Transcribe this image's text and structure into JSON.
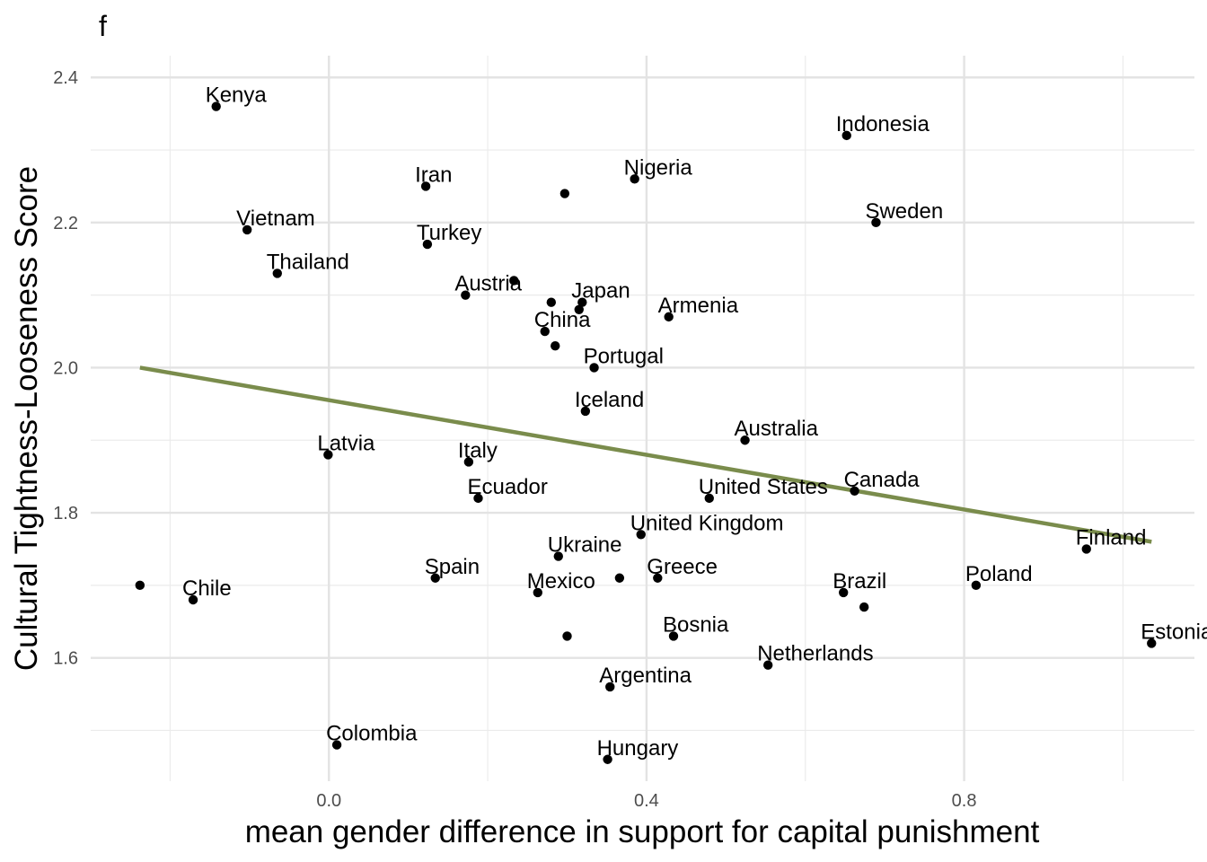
{
  "chart_data": {
    "type": "scatter",
    "panel_tag": "f",
    "title": "",
    "xlabel": "mean gender difference in support for capital punishment",
    "ylabel": "Cultural Tightness-Looseness Score",
    "xlim": [
      -0.3,
      1.09
    ],
    "ylim": [
      1.43,
      2.43
    ],
    "x_ticks": [
      0.0,
      0.4,
      0.8
    ],
    "x_tick_labels": [
      "0.0",
      "0.4",
      "0.8"
    ],
    "x_minor_ticks": [
      -0.4,
      -0.2,
      0.2,
      0.6,
      1.0
    ],
    "y_ticks": [
      1.6,
      1.8,
      2.0,
      2.2,
      2.4
    ],
    "y_tick_labels": [
      "1.6",
      "1.8",
      "2.0",
      "2.2",
      "2.4"
    ],
    "y_minor_ticks": [
      1.5,
      1.7,
      1.9,
      2.1,
      2.3
    ],
    "grid": true,
    "legend": "none",
    "point_color": "#000000",
    "fit_line_color": "#7a8c4c",
    "fit_line": {
      "x": [
        -0.238,
        1.036
      ],
      "y": [
        2.0,
        1.76
      ]
    },
    "points": [
      {
        "label": "Kenya",
        "x": -0.142,
        "y": 2.36
      },
      {
        "label": "Indonesia",
        "x": 0.652,
        "y": 2.32
      },
      {
        "label": "Iran",
        "x": 0.122,
        "y": 2.25
      },
      {
        "label": "",
        "x": 0.297,
        "y": 2.24
      },
      {
        "label": "Nigeria",
        "x": 0.385,
        "y": 2.26
      },
      {
        "label": "Vietnam",
        "x": -0.103,
        "y": 2.19
      },
      {
        "label": "Sweden",
        "x": 0.689,
        "y": 2.2
      },
      {
        "label": "Turkey",
        "x": 0.124,
        "y": 2.17
      },
      {
        "label": "Thailand",
        "x": -0.065,
        "y": 2.13
      },
      {
        "label": "",
        "x": 0.233,
        "y": 2.12
      },
      {
        "label": "Austria",
        "x": 0.172,
        "y": 2.1
      },
      {
        "label": "",
        "x": 0.28,
        "y": 2.09
      },
      {
        "label": "Japan",
        "x": 0.319,
        "y": 2.09
      },
      {
        "label": "",
        "x": 0.315,
        "y": 2.08
      },
      {
        "label": "Armenia",
        "x": 0.428,
        "y": 2.07
      },
      {
        "label": "China",
        "x": 0.272,
        "y": 2.05
      },
      {
        "label": "",
        "x": 0.285,
        "y": 2.03
      },
      {
        "label": "Portugal",
        "x": 0.334,
        "y": 2.0
      },
      {
        "label": "Iceland",
        "x": 0.323,
        "y": 1.94
      },
      {
        "label": "Australia",
        "x": 0.524,
        "y": 1.9
      },
      {
        "label": "Latvia",
        "x": -0.001,
        "y": 1.88
      },
      {
        "label": "Italy",
        "x": 0.176,
        "y": 1.87
      },
      {
        "label": "Ecuador",
        "x": 0.188,
        "y": 1.82
      },
      {
        "label": "United States",
        "x": 0.479,
        "y": 1.82
      },
      {
        "label": "Canada",
        "x": 0.662,
        "y": 1.83
      },
      {
        "label": "United Kingdom",
        "x": 0.393,
        "y": 1.77
      },
      {
        "label": "Finland",
        "x": 0.954,
        "y": 1.75
      },
      {
        "label": "Ukraine",
        "x": 0.289,
        "y": 1.74
      },
      {
        "label": "Spain",
        "x": 0.134,
        "y": 1.71
      },
      {
        "label": "",
        "x": 0.366,
        "y": 1.71
      },
      {
        "label": "Greece",
        "x": 0.414,
        "y": 1.71
      },
      {
        "label": "",
        "x": -0.238,
        "y": 1.7
      },
      {
        "label": "Poland",
        "x": 0.815,
        "y": 1.7
      },
      {
        "label": "Chile",
        "x": -0.171,
        "y": 1.68
      },
      {
        "label": "Mexico",
        "x": 0.263,
        "y": 1.69
      },
      {
        "label": "Brazil",
        "x": 0.648,
        "y": 1.69
      },
      {
        "label": "",
        "x": 0.674,
        "y": 1.67
      },
      {
        "label": "",
        "x": 0.3,
        "y": 1.63
      },
      {
        "label": "Bosnia",
        "x": 0.434,
        "y": 1.63
      },
      {
        "label": "Estonia",
        "x": 1.036,
        "y": 1.62
      },
      {
        "label": "Netherlands",
        "x": 0.553,
        "y": 1.59
      },
      {
        "label": "Argentina",
        "x": 0.354,
        "y": 1.56
      },
      {
        "label": "Colombia",
        "x": 0.01,
        "y": 1.48
      },
      {
        "label": "Hungary",
        "x": 0.351,
        "y": 1.46
      }
    ]
  }
}
